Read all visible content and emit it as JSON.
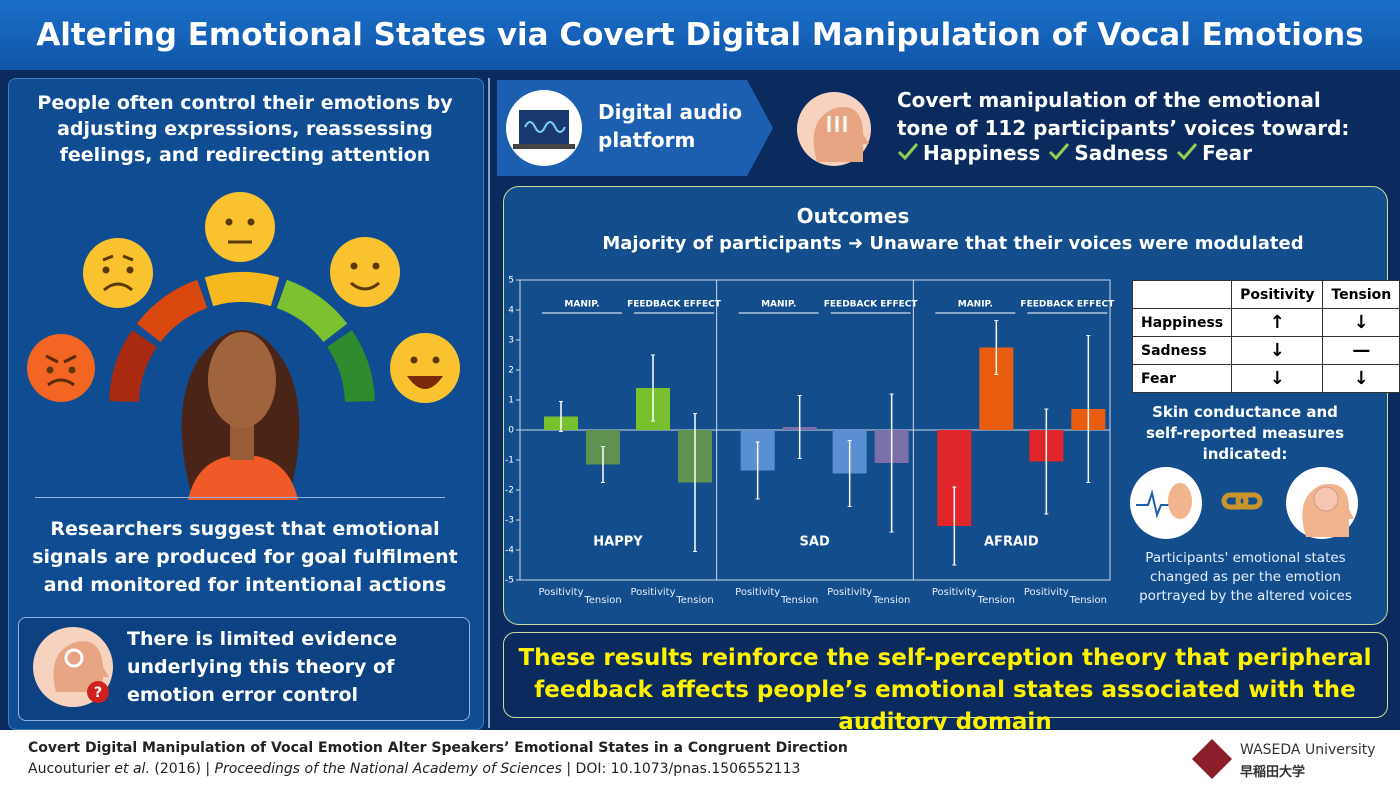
{
  "header": {
    "title": "Altering Emotional States via Covert Digital Manipulation of Vocal Emotions"
  },
  "left": {
    "intro": "People often control their emotions by adjusting expressions, reassessing feelings, and redirecting attention",
    "suggestion": "Researchers suggest that emotional signals are produced for goal fulfilment and monitored for intentional actions",
    "evidence": "There is limited evidence underlying this theory of emotion error control"
  },
  "platform": {
    "label": "Digital audio platform"
  },
  "manipulation": {
    "text": "Covert manipulation of the emotional tone of 112 participants’ voices toward:",
    "targets": [
      "Happiness",
      "Sadness",
      "Fear"
    ]
  },
  "outcomes": {
    "title": "Outcomes",
    "subtitle": "Majority of participants ➜ Unaware that their voices were modulated"
  },
  "chart_data": {
    "type": "bar",
    "categories": [
      "Positivity",
      "Tension",
      "Positivity",
      "Tension",
      "Positivity",
      "Tension",
      "Positivity",
      "Tension",
      "Positivity",
      "Tension",
      "Positivity",
      "Tension"
    ],
    "values": [
      0.45,
      -1.15,
      1.4,
      -1.75,
      -1.35,
      0.1,
      -1.45,
      -1.1,
      -3.2,
      2.75,
      -1.05,
      0.7
    ],
    "errors": [
      0.5,
      0.6,
      1.1,
      2.3,
      0.95,
      1.05,
      1.1,
      2.3,
      1.3,
      0.9,
      1.75,
      2.45
    ],
    "colors": [
      "#79c02e",
      "#5f9150",
      "#79c02e",
      "#5f9150",
      "#5b8fd4",
      "#7b70aa",
      "#5b8fd4",
      "#7b70aa",
      "#e0262a",
      "#e85d0f",
      "#e0262a",
      "#e85d0f"
    ],
    "groups": [
      "HAPPY",
      "SAD",
      "AFRAID"
    ],
    "subgroups": [
      "MANIP.",
      "FEEDBACK EFFECT",
      "MANIP.",
      "FEEDBACK EFFECT",
      "MANIP.",
      "FEEDBACK EFFECT"
    ],
    "ylim": [
      -5,
      5
    ],
    "yticks": [
      -5,
      -4,
      -3,
      -2,
      -1,
      0,
      1,
      2,
      3,
      4,
      5
    ],
    "grid": false
  },
  "table": {
    "columns": [
      "Positivity",
      "Tension"
    ],
    "rows": [
      {
        "label": "Happiness",
        "cells": [
          "↑",
          "↓"
        ]
      },
      {
        "label": "Sadness",
        "cells": [
          "↓",
          "—"
        ]
      },
      {
        "label": "Fear",
        "cells": [
          "↓",
          "↓"
        ]
      }
    ]
  },
  "skin": {
    "text": "Skin conductance and self-reported measures indicated:",
    "caption": "Participants' emotional states changed as per the emotion portrayed by the altered voices"
  },
  "conclusion": "These results reinforce the self-perception theory that peripheral feedback affects people’s emotional states associated with the auditory domain",
  "footer": {
    "title": "Covert Digital Manipulation of Vocal Emotion Alter Speakers’ Emotional States in a Congruent Direction",
    "authors": "Aucouturier",
    "etal": "et al.",
    "year": "(2016)",
    "separator": "|",
    "journal": "Proceedings of the National Academy of Sciences",
    "doi": "DOI: 10.1073/pnas.1506552113",
    "logo": "WASEDA University",
    "logo_jp": "早稲田大学"
  }
}
